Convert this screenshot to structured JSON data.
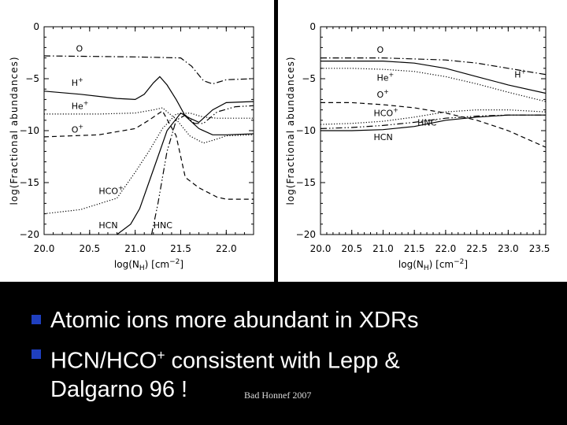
{
  "chart_data": [
    {
      "type": "line",
      "xlabel": "log(N",
      "xlabel_sub": "H",
      "xlabel_unit": ") [cm",
      "xlabel_exp": "−2",
      "xlabel_end": "]",
      "ylabel": "log(Fractional abundances)",
      "xlim": [
        20.0,
        22.3
      ],
      "ylim": [
        -20,
        0
      ],
      "xticks": [
        "20.0",
        "20.5",
        "21.0",
        "21.5",
        "22.0"
      ],
      "yticks": [
        "0",
        "−5",
        "−10",
        "−15",
        "−20"
      ],
      "series": [
        {
          "name": "O",
          "style": "dashdot",
          "x": [
            20.0,
            21.0,
            21.5,
            21.62,
            21.75,
            21.85,
            22.0,
            22.3
          ],
          "y": [
            -2.8,
            -2.9,
            -3.0,
            -3.8,
            -5.2,
            -5.5,
            -5.1,
            -5.0
          ]
        },
        {
          "name": "H+",
          "sup": "+",
          "style": "solid",
          "x": [
            20.0,
            20.4,
            20.8,
            21.0,
            21.1,
            21.2,
            21.27,
            21.35,
            21.45,
            21.55,
            21.7,
            21.85,
            22.0,
            22.3
          ],
          "y": [
            -6.2,
            -6.5,
            -6.9,
            -7.0,
            -6.5,
            -5.4,
            -4.8,
            -5.6,
            -7.0,
            -8.6,
            -9.8,
            -10.4,
            -10.4,
            -10.3
          ]
        },
        {
          "name": "He+",
          "sup": "+",
          "style": "dotted",
          "x": [
            20.0,
            20.6,
            21.0,
            21.2,
            21.3,
            21.45,
            21.6,
            21.75,
            21.9,
            22.0,
            22.3
          ],
          "y": [
            -8.4,
            -8.4,
            -8.3,
            -8.0,
            -7.8,
            -8.9,
            -10.5,
            -11.2,
            -10.8,
            -10.5,
            -10.4
          ]
        },
        {
          "name": "O+",
          "sup": "+",
          "style": "dashed",
          "x": [
            20.0,
            20.6,
            21.0,
            21.15,
            21.3,
            21.45,
            21.55,
            21.7,
            21.9,
            22.0,
            22.3
          ],
          "y": [
            -10.6,
            -10.4,
            -9.8,
            -9.0,
            -8.1,
            -10.5,
            -14.5,
            -15.5,
            -16.4,
            -16.6,
            -16.6
          ]
        },
        {
          "name": "HCO+",
          "sup": "+",
          "style": "dotted",
          "x": [
            20.0,
            20.4,
            20.8,
            21.0,
            21.15,
            21.3,
            21.45,
            21.6,
            21.75,
            21.9,
            22.1,
            22.3
          ],
          "y": [
            -18.0,
            -17.6,
            -16.5,
            -14.0,
            -12.0,
            -9.8,
            -8.4,
            -8.3,
            -8.7,
            -8.8,
            -8.8,
            -8.8
          ]
        },
        {
          "name": "HCN",
          "style": "solid",
          "x": [
            20.8,
            20.95,
            21.05,
            21.15,
            21.25,
            21.35,
            21.5,
            21.6,
            21.7,
            21.85,
            22.0,
            22.3
          ],
          "y": [
            -20.0,
            -19.0,
            -17.5,
            -15.0,
            -12.5,
            -10.0,
            -8.3,
            -8.8,
            -9.2,
            -8.0,
            -7.3,
            -7.2
          ]
        },
        {
          "name": "HNC",
          "style": "dashdotdot",
          "x": [
            21.18,
            21.25,
            21.35,
            21.45,
            21.55,
            21.65,
            21.75,
            21.9,
            22.1,
            22.3
          ],
          "y": [
            -20.0,
            -17.0,
            -12.0,
            -9.0,
            -8.5,
            -9.3,
            -9.3,
            -8.2,
            -7.7,
            -7.6
          ]
        }
      ]
    },
    {
      "type": "line",
      "xlabel": "log(N",
      "xlabel_sub": "H",
      "xlabel_unit": ") [cm",
      "xlabel_exp": "−2",
      "xlabel_end": "]",
      "ylabel": "log(Fractional abundances)",
      "xlim": [
        20.0,
        23.6
      ],
      "ylim": [
        -20,
        0
      ],
      "xticks": [
        "20.0",
        "20.5",
        "21.0",
        "21.5",
        "22.0",
        "22.5",
        "23.0",
        "23.5"
      ],
      "yticks": [
        "0",
        "−5",
        "−10",
        "−15",
        "−20"
      ],
      "series": [
        {
          "name": "O",
          "style": "dashdot",
          "x": [
            20.0,
            21.0,
            21.5,
            22.0,
            22.5,
            23.0,
            23.6
          ],
          "y": [
            -3.0,
            -3.0,
            -3.1,
            -3.2,
            -3.5,
            -4.0,
            -4.6
          ]
        },
        {
          "name": "H+",
          "sup": "+",
          "style": "solid",
          "x": [
            20.0,
            21.0,
            21.5,
            22.0,
            22.5,
            23.0,
            23.6
          ],
          "y": [
            -3.3,
            -3.3,
            -3.5,
            -4.0,
            -4.8,
            -5.6,
            -6.4
          ]
        },
        {
          "name": "He+",
          "sup": "+",
          "style": "dotted",
          "x": [
            20.0,
            20.5,
            21.0,
            21.5,
            22.0,
            22.5,
            23.0,
            23.6
          ],
          "y": [
            -4.0,
            -4.0,
            -4.1,
            -4.3,
            -4.8,
            -5.5,
            -6.3,
            -7.2
          ]
        },
        {
          "name": "O+",
          "sup": "+",
          "style": "dashed",
          "x": [
            20.0,
            20.5,
            21.0,
            21.5,
            22.0,
            22.5,
            23.0,
            23.6
          ],
          "y": [
            -7.3,
            -7.3,
            -7.5,
            -7.8,
            -8.3,
            -9.0,
            -10.0,
            -11.6
          ]
        },
        {
          "name": "HCO+",
          "sup": "+",
          "style": "dotted",
          "x": [
            20.0,
            20.5,
            21.0,
            21.5,
            22.0,
            22.5,
            23.0,
            23.6
          ],
          "y": [
            -9.4,
            -9.3,
            -9.1,
            -8.7,
            -8.2,
            -8.0,
            -8.0,
            -8.2
          ]
        },
        {
          "name": "HNC",
          "style": "dashdotdot",
          "x": [
            20.0,
            20.5,
            21.0,
            21.5,
            22.0,
            22.5,
            23.0,
            23.6
          ],
          "y": [
            -9.8,
            -9.7,
            -9.5,
            -9.2,
            -8.8,
            -8.6,
            -8.5,
            -8.5
          ]
        },
        {
          "name": "HCN",
          "style": "solid",
          "x": [
            20.0,
            20.5,
            21.0,
            21.5,
            22.0,
            22.5,
            23.0,
            23.6
          ],
          "y": [
            -10.0,
            -10.0,
            -9.9,
            -9.6,
            -9.0,
            -8.7,
            -8.5,
            -8.5
          ]
        }
      ]
    }
  ],
  "labels": {
    "left": [
      {
        "text": "O",
        "sup": "",
        "x": 20.35,
        "y": -2.4
      },
      {
        "text": "H",
        "sup": "+",
        "x": 20.3,
        "y": -5.7
      },
      {
        "text": "He",
        "sup": "+",
        "x": 20.3,
        "y": -7.9
      },
      {
        "text": "O",
        "sup": "+",
        "x": 20.3,
        "y": -10.2
      },
      {
        "text": "HCO",
        "sup": "+",
        "x": 20.6,
        "y": -16.1
      },
      {
        "text": "HCN",
        "sup": "",
        "x": 20.6,
        "y": -19.4
      },
      {
        "text": "HNC",
        "sup": "",
        "x": 21.2,
        "y": -19.4
      }
    ],
    "right": [
      {
        "text": "O",
        "sup": "",
        "x": 20.9,
        "y": -2.5
      },
      {
        "text": "H",
        "sup": "+",
        "x": 23.1,
        "y": -4.9
      },
      {
        "text": "He",
        "sup": "+",
        "x": 20.9,
        "y": -5.2
      },
      {
        "text": "O",
        "sup": "+",
        "x": 20.9,
        "y": -6.8
      },
      {
        "text": "HCO",
        "sup": "+",
        "x": 20.85,
        "y": -8.6
      },
      {
        "text": "HNC",
        "sup": "",
        "x": 21.55,
        "y": -9.5
      },
      {
        "text": "HCN",
        "sup": "",
        "x": 20.85,
        "y": -10.9
      }
    ]
  },
  "bullets": {
    "item1": "Atomic ions more abundant in XDRs",
    "item2_pre": "HCN/HCO",
    "item2_sup": "+",
    "item2_post": " consistent with Lepp &",
    "item2_cont": "Dalgarno 96 !"
  },
  "credit": "Bad Honnef 2007"
}
